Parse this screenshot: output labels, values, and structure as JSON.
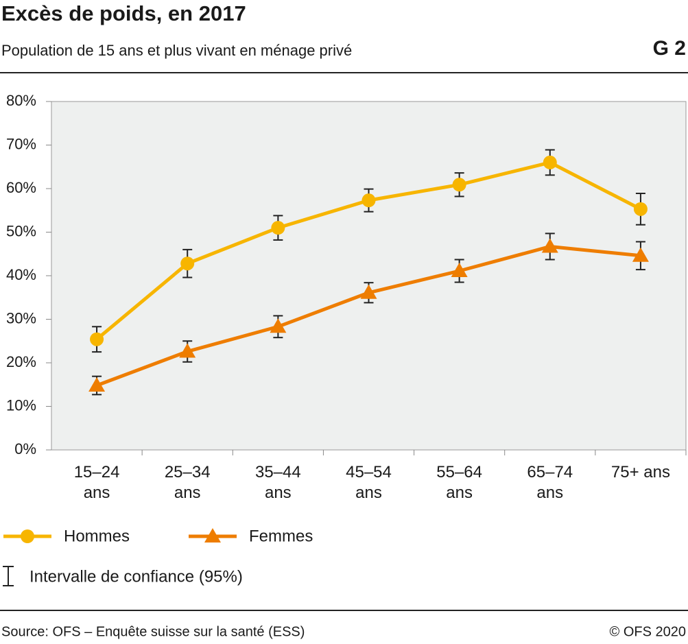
{
  "chart_data": {
    "type": "line",
    "title": "Excès de poids, en 2017",
    "subtitle": "Population de 15 ans et plus vivant en ménage privé",
    "chart_id": "G 2",
    "categories": [
      "15–24 ans",
      "25–34 ans",
      "35–44 ans",
      "45–54 ans",
      "55–64 ans",
      "65–74 ans",
      "75+ ans"
    ],
    "series": [
      {
        "name": "Hommes",
        "color": "#f7b500",
        "marker": "circle",
        "values": [
          25.4,
          42.8,
          51.0,
          57.3,
          60.9,
          66.0,
          55.3
        ],
        "errors": [
          2.9,
          3.2,
          2.8,
          2.6,
          2.7,
          2.9,
          3.6
        ]
      },
      {
        "name": "Femmes",
        "color": "#ee7d00",
        "marker": "triangle",
        "values": [
          14.8,
          22.6,
          28.3,
          36.1,
          41.1,
          46.7,
          44.6
        ],
        "errors": [
          2.1,
          2.4,
          2.5,
          2.3,
          2.6,
          3.0,
          3.2
        ]
      }
    ],
    "ylim": [
      0,
      80
    ],
    "yticks": [
      {
        "value": 0,
        "label": "0%"
      },
      {
        "value": 10,
        "label": "10%"
      },
      {
        "value": 20,
        "label": "20%"
      },
      {
        "value": 30,
        "label": "30%"
      },
      {
        "value": 40,
        "label": "40%"
      },
      {
        "value": 50,
        "label": "50%"
      },
      {
        "value": 60,
        "label": "60%"
      },
      {
        "value": 70,
        "label": "70%"
      },
      {
        "value": 80,
        "label": "80%"
      }
    ],
    "grid": false,
    "ci_label": "Intervalle de confiance (95%)",
    "source": "Source: OFS – Enquête suisse sur la santé (ESS)",
    "copyright": "© OFS 2020"
  }
}
